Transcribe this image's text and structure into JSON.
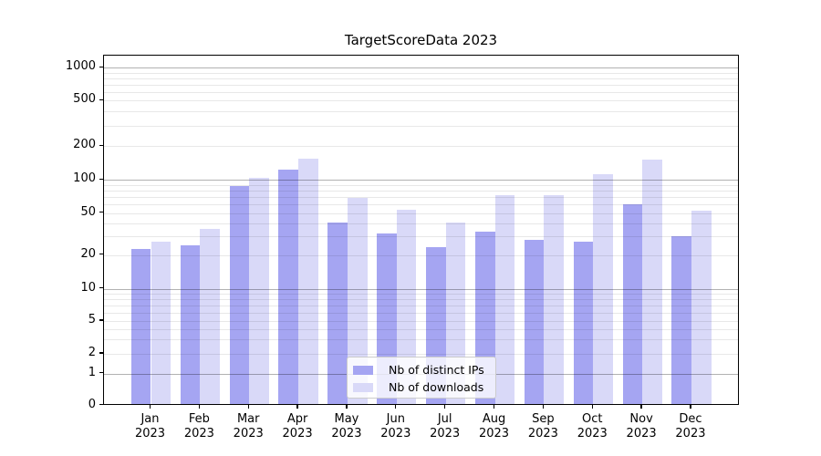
{
  "title": "TargetScoreData 2023",
  "chart_data": {
    "type": "bar",
    "title": "TargetScoreData 2023",
    "categories": [
      "Jan",
      "Feb",
      "Mar",
      "Apr",
      "May",
      "Jun",
      "Jul",
      "Aug",
      "Sep",
      "Oct",
      "Nov",
      "Dec"
    ],
    "year": "2023",
    "series": [
      {
        "name": "Nb of distinct IPs",
        "color": "#a5a5f2",
        "values": [
          22,
          24,
          84,
          120,
          39,
          31,
          23,
          32,
          27,
          26,
          58,
          29
        ]
      },
      {
        "name": "Nb of downloads",
        "color": "#d9d9f8",
        "values": [
          26,
          34,
          100,
          148,
          66,
          52,
          39,
          70,
          70,
          108,
          145,
          51
        ]
      }
    ],
    "yticks": [
      0,
      1,
      2,
      5,
      10,
      20,
      50,
      100,
      200,
      500,
      1000
    ],
    "major_yticks": [
      1,
      10,
      100,
      1000
    ],
    "yscale": "symlog",
    "ylim": [
      0,
      1000
    ],
    "xlabel": "",
    "ylabel": "",
    "grid": true,
    "legend_position": "lower center"
  },
  "colors": {
    "background": "#ffffff",
    "axis": "#000000",
    "grid_major": "#b3b3b3",
    "grid_minor": "#e8e8e8",
    "bar_distinct_ips": "#a5a5f2",
    "bar_downloads": "#d9d9f8",
    "legend_border": "#cccccc"
  }
}
